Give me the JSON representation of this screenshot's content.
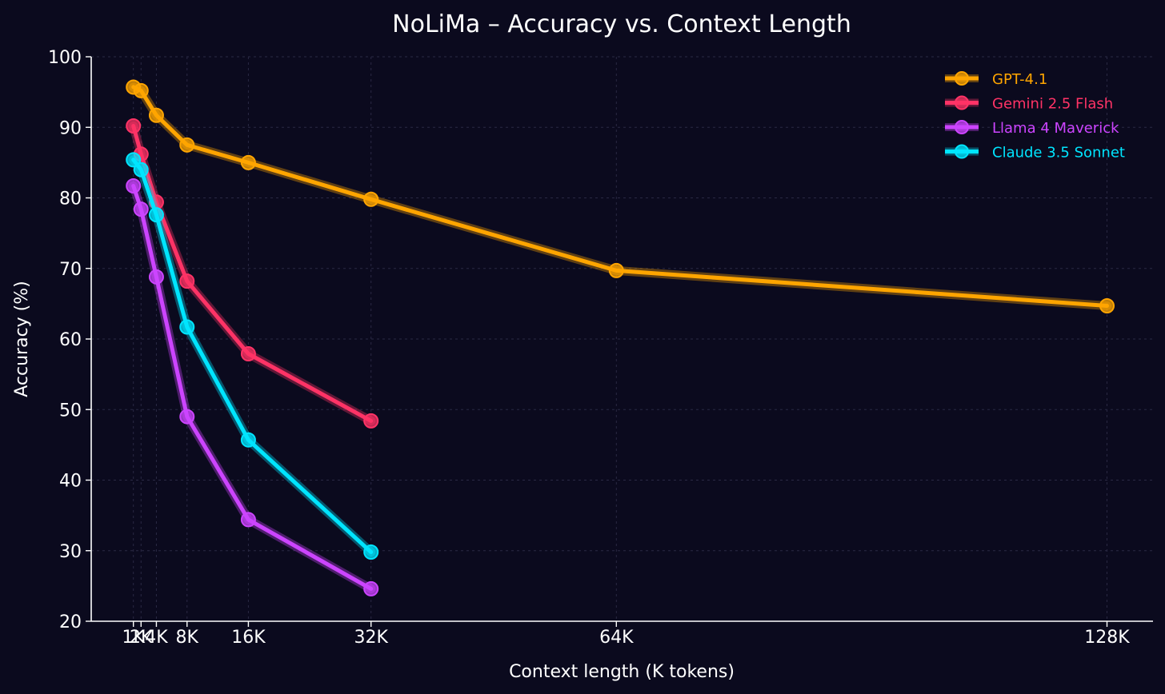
{
  "chart_data": {
    "type": "line",
    "title": "NoLiMa – Accuracy vs. Context Length",
    "xlabel": "Context length (K tokens)",
    "ylabel": "Accuracy (%)",
    "x": [
      1,
      2,
      4,
      8,
      16,
      32,
      64,
      128
    ],
    "xtick_labels": [
      "1K",
      "2K",
      "4K",
      "8K",
      "16K",
      "32K",
      "64K",
      "128K"
    ],
    "ylim": [
      20,
      100
    ],
    "yticks": [
      20,
      30,
      40,
      50,
      60,
      70,
      80,
      90,
      100
    ],
    "xlim": [
      -4.5,
      134
    ],
    "grid": true,
    "legend_position": "top-right",
    "series": [
      {
        "name": "GPT-4.1",
        "color": "#ffa500",
        "x": [
          1,
          2,
          4,
          8,
          16,
          32,
          64,
          128
        ],
        "values": [
          95.7,
          95.2,
          91.7,
          87.5,
          85.0,
          79.8,
          69.7,
          64.7
        ]
      },
      {
        "name": "Gemini 2.5 Flash",
        "color": "#ff3366",
        "x": [
          1,
          2,
          4,
          8,
          16,
          32
        ],
        "values": [
          90.2,
          86.2,
          79.4,
          68.2,
          57.9,
          48.4
        ]
      },
      {
        "name": "Llama 4 Maverick",
        "color": "#cc44ff",
        "x": [
          1,
          2,
          4,
          8,
          16,
          32
        ],
        "values": [
          81.7,
          78.4,
          68.8,
          49.0,
          34.4,
          24.6
        ]
      },
      {
        "name": "Claude 3.5 Sonnet",
        "color": "#00e5ff",
        "x": [
          1,
          2,
          4,
          8,
          16,
          32
        ],
        "values": [
          85.4,
          84.0,
          77.6,
          61.7,
          45.7,
          29.8
        ]
      }
    ]
  }
}
